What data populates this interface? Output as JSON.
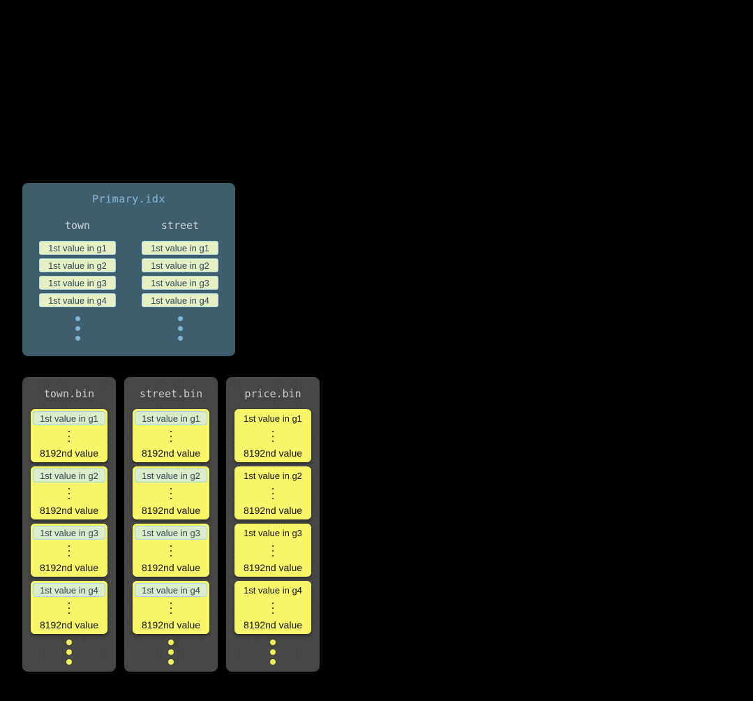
{
  "primary_index": {
    "title": "Primary.idx",
    "columns": [
      {
        "header": "town",
        "entries": [
          "1st value in g1",
          "1st value in g2",
          "1st value in g3",
          "1st value in g4"
        ]
      },
      {
        "header": "street",
        "entries": [
          "1st value in g1",
          "1st value in g2",
          "1st value in g3",
          "1st value in g4"
        ]
      }
    ]
  },
  "bin_files": [
    {
      "title": "town.bin",
      "first_values_highlighted": true,
      "granules": [
        {
          "first": "1st value in g1",
          "last": "8192nd value"
        },
        {
          "first": "1st value in g2",
          "last": "8192nd value"
        },
        {
          "first": "1st value in g3",
          "last": "8192nd value"
        },
        {
          "first": "1st value in g4",
          "last": "8192nd value"
        }
      ]
    },
    {
      "title": "street.bin",
      "first_values_highlighted": true,
      "granules": [
        {
          "first": "1st value in g1",
          "last": "8192nd value"
        },
        {
          "first": "1st value in g2",
          "last": "8192nd value"
        },
        {
          "first": "1st value in g3",
          "last": "8192nd value"
        },
        {
          "first": "1st value in g4",
          "last": "8192nd value"
        }
      ]
    },
    {
      "title": "price.bin",
      "first_values_highlighted": false,
      "granules": [
        {
          "first": "1st value in g1",
          "last": "8192nd value"
        },
        {
          "first": "1st value in g2",
          "last": "8192nd value"
        },
        {
          "first": "1st value in g3",
          "last": "8192nd value"
        },
        {
          "first": "1st value in g4",
          "last": "8192nd value"
        }
      ]
    }
  ],
  "colors": {
    "page_background": "#010101",
    "primary_box": "#3f5d6b",
    "primary_title_text": "#85b9d9",
    "column_header_text": "#ccd3d7",
    "index_pill_bg": "#e7f0c5",
    "index_pill_border": "#a9d8e8",
    "index_pill_text": "#2e4657",
    "index_ellipsis_dots": "#7db6d6",
    "bin_box_bg": "#464645",
    "bin_title_text": "#cbcbcb",
    "granule_bg": "#f8f669",
    "granule_text": "#111111",
    "highlight_pill_bg": "#dcecca",
    "highlight_pill_border": "#a0d4e6",
    "bin_ellipsis_dots": "#f2f05d"
  }
}
